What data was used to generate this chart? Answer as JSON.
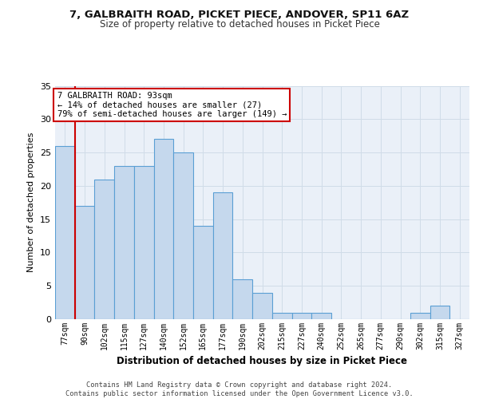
{
  "title_line1": "7, GALBRAITH ROAD, PICKET PIECE, ANDOVER, SP11 6AZ",
  "title_line2": "Size of property relative to detached houses in Picket Piece",
  "xlabel": "Distribution of detached houses by size in Picket Piece",
  "ylabel": "Number of detached properties",
  "categories": [
    "77sqm",
    "90sqm",
    "102sqm",
    "115sqm",
    "127sqm",
    "140sqm",
    "152sqm",
    "165sqm",
    "177sqm",
    "190sqm",
    "202sqm",
    "215sqm",
    "227sqm",
    "240sqm",
    "252sqm",
    "265sqm",
    "277sqm",
    "290sqm",
    "302sqm",
    "315sqm",
    "327sqm"
  ],
  "values": [
    26,
    17,
    21,
    23,
    23,
    27,
    25,
    14,
    19,
    6,
    4,
    1,
    1,
    1,
    0,
    0,
    0,
    0,
    1,
    2,
    0
  ],
  "bar_color": "#c5d8ed",
  "bar_edge_color": "#5a9fd4",
  "annotation_text": "7 GALBRAITH ROAD: 93sqm\n← 14% of detached houses are smaller (27)\n79% of semi-detached houses are larger (149) →",
  "annotation_box_color": "#ffffff",
  "annotation_box_edge": "#cc0000",
  "vline_color": "#cc0000",
  "grid_color": "#d0dce8",
  "bg_color": "#eaf0f8",
  "ylim": [
    0,
    35
  ],
  "yticks": [
    0,
    5,
    10,
    15,
    20,
    25,
    30,
    35
  ],
  "footer": "Contains HM Land Registry data © Crown copyright and database right 2024.\nContains public sector information licensed under the Open Government Licence v3.0."
}
